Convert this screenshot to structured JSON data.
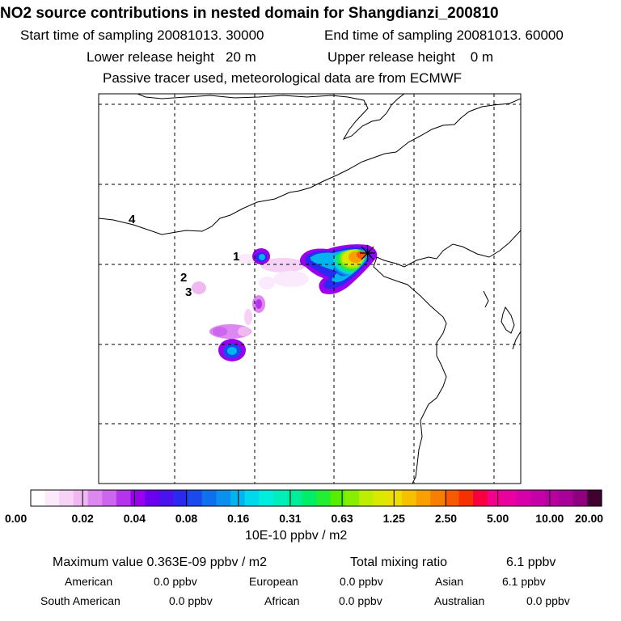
{
  "header": {
    "title": "NO2 source contributions in nested domain for Shangdianzi_200810",
    "start_label": "Start time of sampling 20081013. 30000",
    "end_label": "End time of sampling 20081013. 60000",
    "lower_height_label": "Lower release height   20 m",
    "upper_height_label": "Upper release height    0 m",
    "tracer_note": "Passive tracer used, meteorological data are from ECMWF"
  },
  "map": {
    "source_labels": [
      "1",
      "2",
      "3",
      "4"
    ],
    "receptor_marker": "asterisk-star"
  },
  "colorbar": {
    "tick_labels": [
      "0.00",
      "0.02",
      "0.04",
      "0.08",
      "0.16",
      "0.31",
      "0.63",
      "1.25",
      "2.50",
      "5.00",
      "10.00",
      "20.00"
    ],
    "unit": "10E-10 ppbv / m2",
    "colors": [
      "#ffffff",
      "#fbeafb",
      "#f6d2f6",
      "#f0b8f0",
      "#dd88f0",
      "#cc66ee",
      "#b633ee",
      "#9900ee",
      "#6a00ee",
      "#4a12ee",
      "#2a2aee",
      "#1a4aee",
      "#0f70ee",
      "#0a90ee",
      "#00b4ee",
      "#00d8ee",
      "#00eedd",
      "#00eebb",
      "#00ee99",
      "#00ee66",
      "#22ee33",
      "#55ee00",
      "#88ee00",
      "#bbee00",
      "#dde800",
      "#eedd00",
      "#f5c000",
      "#f7a000",
      "#f77f00",
      "#f75a00",
      "#f73000",
      "#f70040",
      "#f3008c",
      "#e800a0",
      "#d800a8",
      "#c600a8",
      "#b800a0",
      "#a80098",
      "#8e0080",
      "#400030"
    ]
  },
  "stats": {
    "max_label": "Maximum value  0.363E-09 ppbv / m2",
    "total_label": "Total mixing ratio",
    "total_value": "6.1 ppbv"
  },
  "regions": [
    {
      "name": "American",
      "value": "0.0 ppbv"
    },
    {
      "name": "European",
      "value": "0.0 ppbv"
    },
    {
      "name": "Asian",
      "value": "6.1 ppbv"
    },
    {
      "name": "South American",
      "value": "0.0 ppbv"
    },
    {
      "name": "African",
      "value": "0.0 ppbv"
    },
    {
      "name": "Australian",
      "value": "0.0 ppbv"
    }
  ]
}
